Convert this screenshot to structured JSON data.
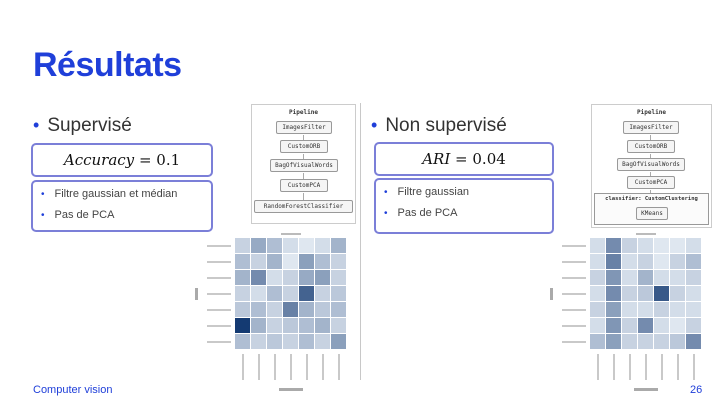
{
  "slide": {
    "title": "Résultats",
    "footer_left": "Computer vision",
    "page_number": "26",
    "accent_color": "#1f3fd9",
    "box_border_color": "#7b7fd8"
  },
  "left": {
    "heading": "Supervisé",
    "metric_name": "Accuracy",
    "metric_value": "= 0.1",
    "details": [
      "Filtre gaussian et médian",
      "Pas de PCA"
    ],
    "pipeline": {
      "title": "Pipeline",
      "steps": [
        "ImagesFilter",
        "CustomORB",
        "BagOfVisualWords",
        "CustomPCA",
        "RandomForestClassifier"
      ]
    }
  },
  "right": {
    "heading": "Non supervisé",
    "metric_name": "ARI",
    "metric_value": "= 0.04",
    "details": [
      "Filtre gaussian",
      "Pas de PCA"
    ],
    "pipeline": {
      "title": "Pipeline",
      "steps": [
        "ImagesFilter",
        "CustomORB",
        "BagOfVisualWords",
        "CustomPCA"
      ],
      "cluster_label": "classifier: CustomClustering",
      "cluster_step": "KMeans"
    }
  },
  "chart_data": [
    {
      "type": "heatmap",
      "rows": 7,
      "cols": 7,
      "intensity": [
        [
          0.2,
          0.4,
          0.3,
          0.15,
          0.1,
          0.15,
          0.35
        ],
        [
          0.3,
          0.2,
          0.35,
          0.1,
          0.45,
          0.3,
          0.2
        ],
        [
          0.35,
          0.55,
          0.15,
          0.2,
          0.4,
          0.45,
          0.2
        ],
        [
          0.2,
          0.15,
          0.3,
          0.2,
          0.75,
          0.2,
          0.25
        ],
        [
          0.25,
          0.3,
          0.2,
          0.6,
          0.35,
          0.25,
          0.3
        ],
        [
          0.95,
          0.35,
          0.2,
          0.25,
          0.3,
          0.35,
          0.2
        ],
        [
          0.3,
          0.2,
          0.25,
          0.2,
          0.3,
          0.2,
          0.45
        ]
      ]
    },
    {
      "type": "heatmap",
      "rows": 7,
      "cols": 7,
      "intensity": [
        [
          0.15,
          0.55,
          0.2,
          0.15,
          0.1,
          0.1,
          0.15
        ],
        [
          0.15,
          0.6,
          0.15,
          0.2,
          0.1,
          0.2,
          0.3
        ],
        [
          0.2,
          0.5,
          0.15,
          0.35,
          0.15,
          0.15,
          0.2
        ],
        [
          0.15,
          0.55,
          0.2,
          0.25,
          0.8,
          0.2,
          0.15
        ],
        [
          0.2,
          0.45,
          0.15,
          0.15,
          0.2,
          0.15,
          0.15
        ],
        [
          0.15,
          0.5,
          0.2,
          0.55,
          0.15,
          0.1,
          0.2
        ],
        [
          0.3,
          0.45,
          0.2,
          0.2,
          0.2,
          0.25,
          0.55
        ]
      ]
    }
  ]
}
